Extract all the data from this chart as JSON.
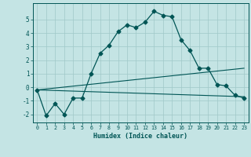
{
  "title": "",
  "xlabel": "Humidex (Indice chaleur)",
  "background_color": "#c4e4e4",
  "grid_color": "#a0c8c8",
  "line_color": "#005555",
  "xlim": [
    -0.5,
    23.5
  ],
  "ylim": [
    -2.6,
    6.2
  ],
  "yticks": [
    -2,
    -1,
    0,
    1,
    2,
    3,
    4,
    5
  ],
  "xticks": [
    0,
    1,
    2,
    3,
    4,
    5,
    6,
    7,
    8,
    9,
    10,
    11,
    12,
    13,
    14,
    15,
    16,
    17,
    18,
    19,
    20,
    21,
    22,
    23
  ],
  "series1_x": [
    0,
    1,
    2,
    3,
    4,
    5,
    6,
    7,
    8,
    9,
    10,
    11,
    12,
    13,
    14,
    15,
    16,
    17,
    18,
    19,
    20,
    21,
    22,
    23
  ],
  "series1_y": [
    -0.2,
    -2.1,
    -1.2,
    -2.0,
    -0.8,
    -0.8,
    1.0,
    2.5,
    3.1,
    4.1,
    4.6,
    4.4,
    4.8,
    5.6,
    5.3,
    5.2,
    3.5,
    2.7,
    1.4,
    1.4,
    0.2,
    0.1,
    -0.6,
    -0.8
  ],
  "series2_x": [
    0,
    23
  ],
  "series2_y": [
    -0.2,
    1.4
  ],
  "series3_x": [
    0,
    23
  ],
  "series3_y": [
    -0.2,
    -0.7
  ]
}
